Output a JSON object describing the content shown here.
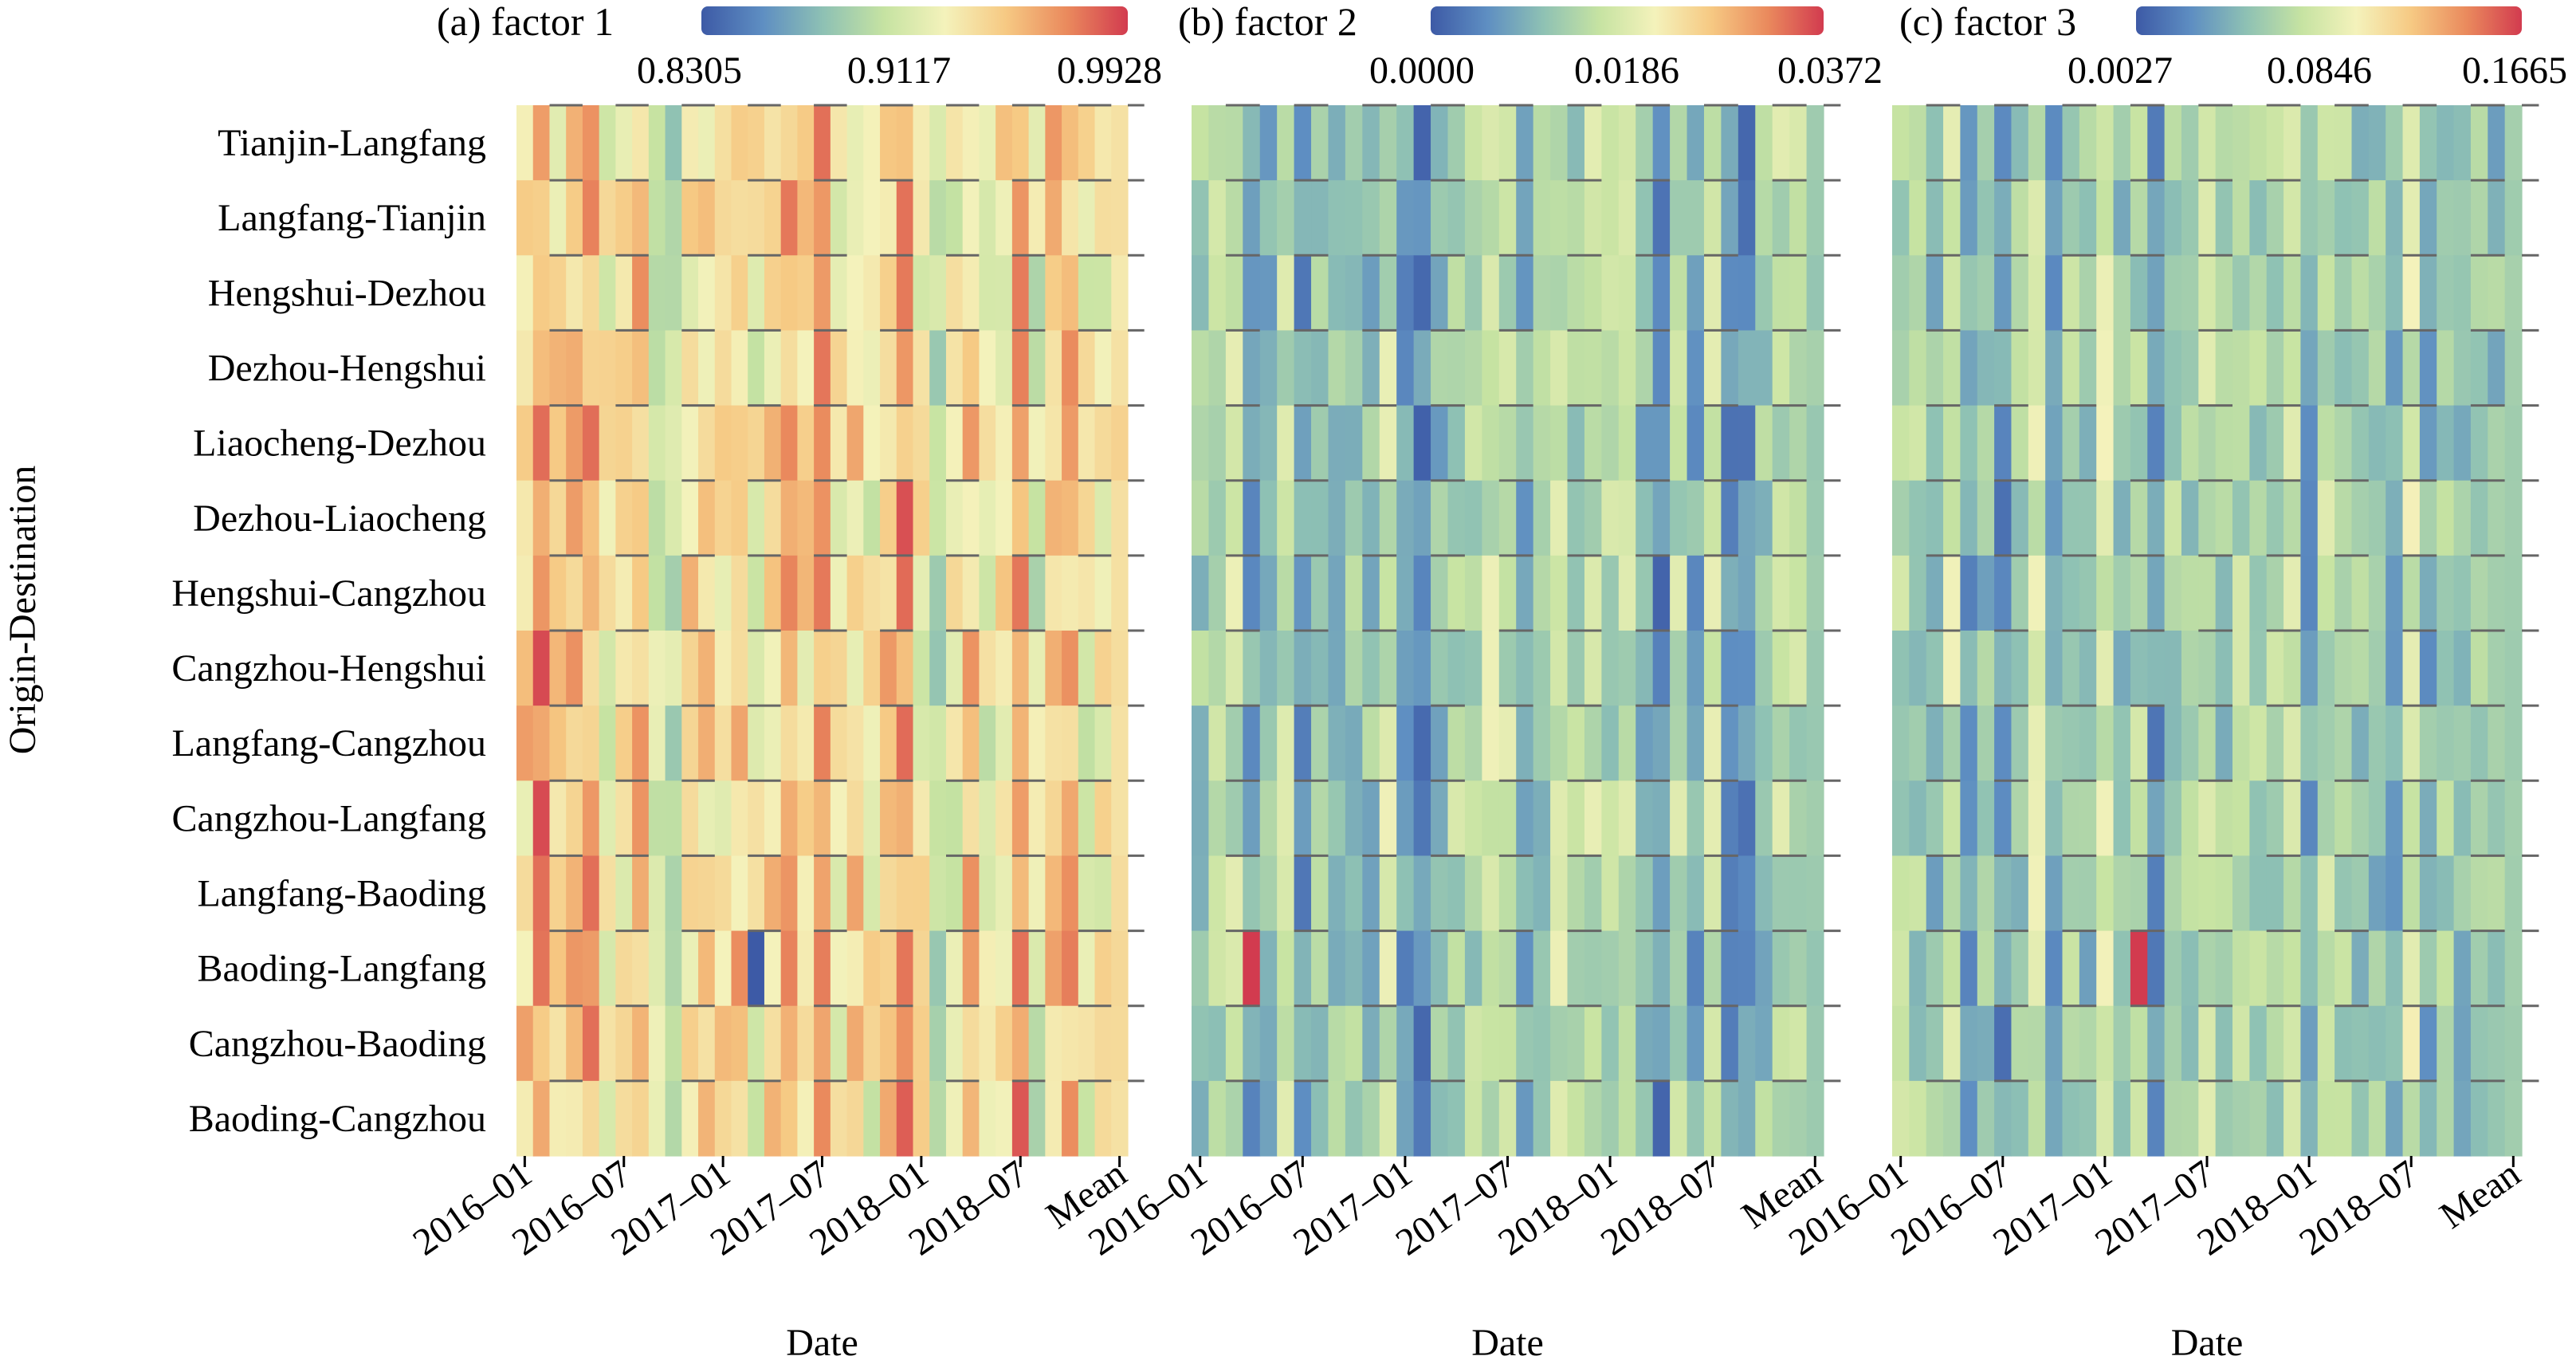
{
  "figure": {
    "ylabel": "Origin-Destination",
    "row_labels": [
      "Tianjin-Langfang",
      "Langfang-Tianjin",
      "Hengshui-Dezhou",
      "Dezhou-Hengshui",
      "Liaocheng-Dezhou",
      "Dezhou-Liaocheng",
      "Hengshui-Cangzhou",
      "Cangzhou-Hengshui",
      "Langfang-Cangzhou",
      "Cangzhou-Langfang",
      "Langfang-Baoding",
      "Baoding-Langfang",
      "Cangzhou-Baoding",
      "Baoding-Cangzhou"
    ],
    "xtick_labels": [
      "2016–01",
      "2016–07",
      "2017–01",
      "2017–07",
      "2018–01",
      "2018–07",
      "Mean"
    ],
    "xlabel": "Date"
  },
  "colormap": [
    "#3d5aa6",
    "#5e8ec2",
    "#8ec1b4",
    "#c6e3a2",
    "#f4f2bb",
    "#f6c983",
    "#ea8a5d",
    "#d23b4f"
  ],
  "chart_data": [
    {
      "type": "heatmap",
      "title": "(a) factor 1",
      "xlabel": "Date",
      "ylabel": "Origin-Destination",
      "colorbar_ticks": [
        "0.8305",
        "0.9117",
        "0.9928"
      ],
      "vmin": 0.8305,
      "vmax": 0.9928,
      "rows": 14,
      "columns": 37,
      "last_column": "Mean",
      "highlights": [
        {
          "row": "Baoding-Langfang",
          "date": "2017-03",
          "value": 0.8305
        }
      ]
    },
    {
      "type": "heatmap",
      "title": "(b) factor 2",
      "xlabel": "Date",
      "colorbar_ticks": [
        "0.0000",
        "0.0186",
        "0.0372"
      ],
      "vmin": 0.0,
      "vmax": 0.0372,
      "rows": 14,
      "columns": 37,
      "last_column": "Mean",
      "highlights": [
        {
          "row": "Baoding-Langfang",
          "date": "2016-04",
          "value": 0.0372
        }
      ]
    },
    {
      "type": "heatmap",
      "title": "(c) factor 3",
      "xlabel": "Date",
      "colorbar_ticks": [
        "0.0027",
        "0.0846",
        "0.1665"
      ],
      "vmin": 0.0027,
      "vmax": 0.1665,
      "rows": 14,
      "columns": 37,
      "last_column": "Mean",
      "highlights": [
        {
          "row": "Baoding-Langfang",
          "date": "2017-03",
          "value": 0.1665
        }
      ]
    }
  ]
}
